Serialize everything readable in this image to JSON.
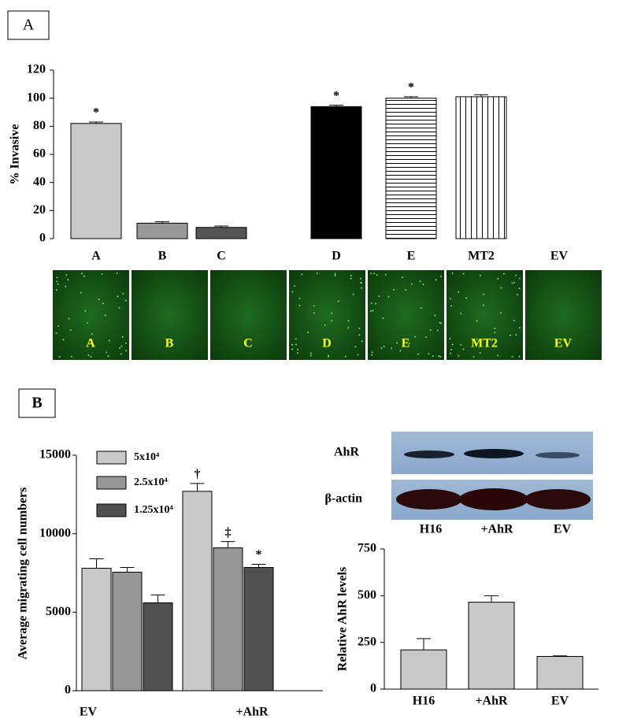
{
  "panels": [
    "A",
    "B"
  ],
  "images": {
    "labels": [
      "A",
      "B",
      "C",
      "D",
      "E",
      "MT2",
      "EV"
    ]
  },
  "blot": {
    "rows": [
      "AhR",
      "β-actin"
    ],
    "lanes": [
      "H16",
      "+AhR",
      "EV"
    ]
  },
  "chart_data": [
    {
      "type": "bar",
      "y_label": "% Invasive",
      "categories": [
        "A",
        "B",
        "C",
        "D",
        "E",
        "MT2",
        "EV"
      ],
      "values": [
        82,
        11,
        8,
        94,
        100,
        101,
        null
      ],
      "errors": [
        1,
        1,
        1,
        1,
        1,
        1.5,
        null
      ],
      "markers": [
        "*",
        null,
        null,
        "*",
        "*",
        null,
        null
      ],
      "colors": [
        "#c8c8c8",
        "#999999",
        "#555555",
        "#000000",
        "#ffffff",
        "#ffffff",
        null
      ],
      "patterns": [
        null,
        null,
        null,
        null,
        "horizontal",
        "vertical",
        null
      ],
      "ylim": [
        0,
        120
      ],
      "yticks": [
        0,
        20,
        40,
        60,
        80,
        100,
        120
      ]
    },
    {
      "type": "bar",
      "y_label": "Average migrating cell numbers",
      "categories": [
        "EV",
        "+AhR"
      ],
      "series": [
        {
          "name": "5x10⁴",
          "color": "#c8c8c8",
          "values": [
            7800,
            12700
          ],
          "errors": [
            600,
            500
          ],
          "markers": [
            null,
            "†"
          ]
        },
        {
          "name": "2.5x10⁴",
          "color": "#969696",
          "values": [
            7550,
            9100
          ],
          "errors": [
            300,
            400
          ],
          "markers": [
            null,
            "‡"
          ]
        },
        {
          "name": "1.25x10⁴",
          "color": "#505050",
          "values": [
            5600,
            7850
          ],
          "errors": [
            500,
            200
          ],
          "markers": [
            null,
            "*"
          ]
        }
      ],
      "ylim": [
        0,
        15000
      ],
      "yticks": [
        0,
        5000,
        10000,
        15000
      ],
      "legend": "upper left"
    },
    {
      "type": "bar",
      "y_label": "Relative AhR levels",
      "categories": [
        "H16",
        "+AhR",
        "EV"
      ],
      "values": [
        210,
        465,
        175
      ],
      "errors": [
        60,
        35,
        3
      ],
      "color": "#c8c8c8",
      "ylim": [
        0,
        750
      ],
      "yticks": [
        0,
        250,
        500,
        750
      ]
    }
  ]
}
